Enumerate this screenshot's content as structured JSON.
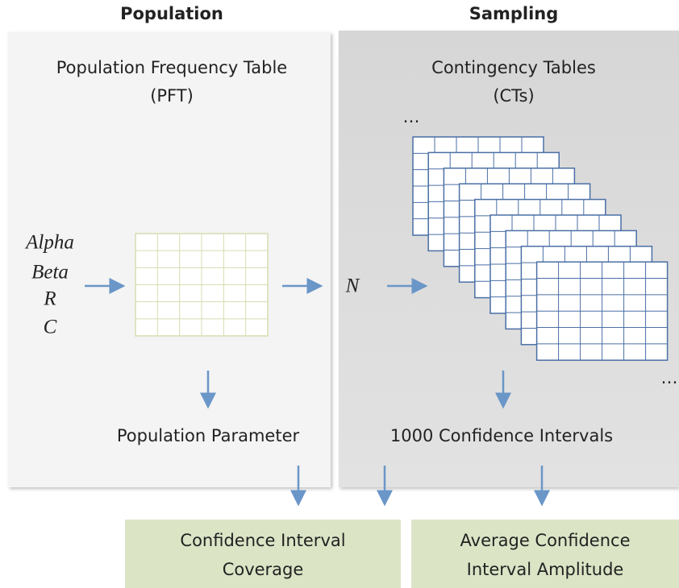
{
  "headers": {
    "population": "Population",
    "sampling": "Sampling"
  },
  "population_panel": {
    "title_lines": [
      "Population Frequency Table",
      "(PFT)"
    ],
    "inputs": [
      "Alpha",
      "Beta",
      "R",
      "C"
    ],
    "output": "Population Parameter"
  },
  "sampling_panel": {
    "title_lines": [
      "Contingency Tables",
      "(CTs)"
    ],
    "ellipsis_top": "…",
    "ellipsis_bottom": "…",
    "input": "N",
    "output": "1000 Confidence Intervals"
  },
  "results": [
    {
      "lines": [
        "Confidence Interval",
        "Coverage"
      ]
    },
    {
      "lines": [
        "Average Confidence",
        "Interval Amplitude"
      ]
    }
  ]
}
